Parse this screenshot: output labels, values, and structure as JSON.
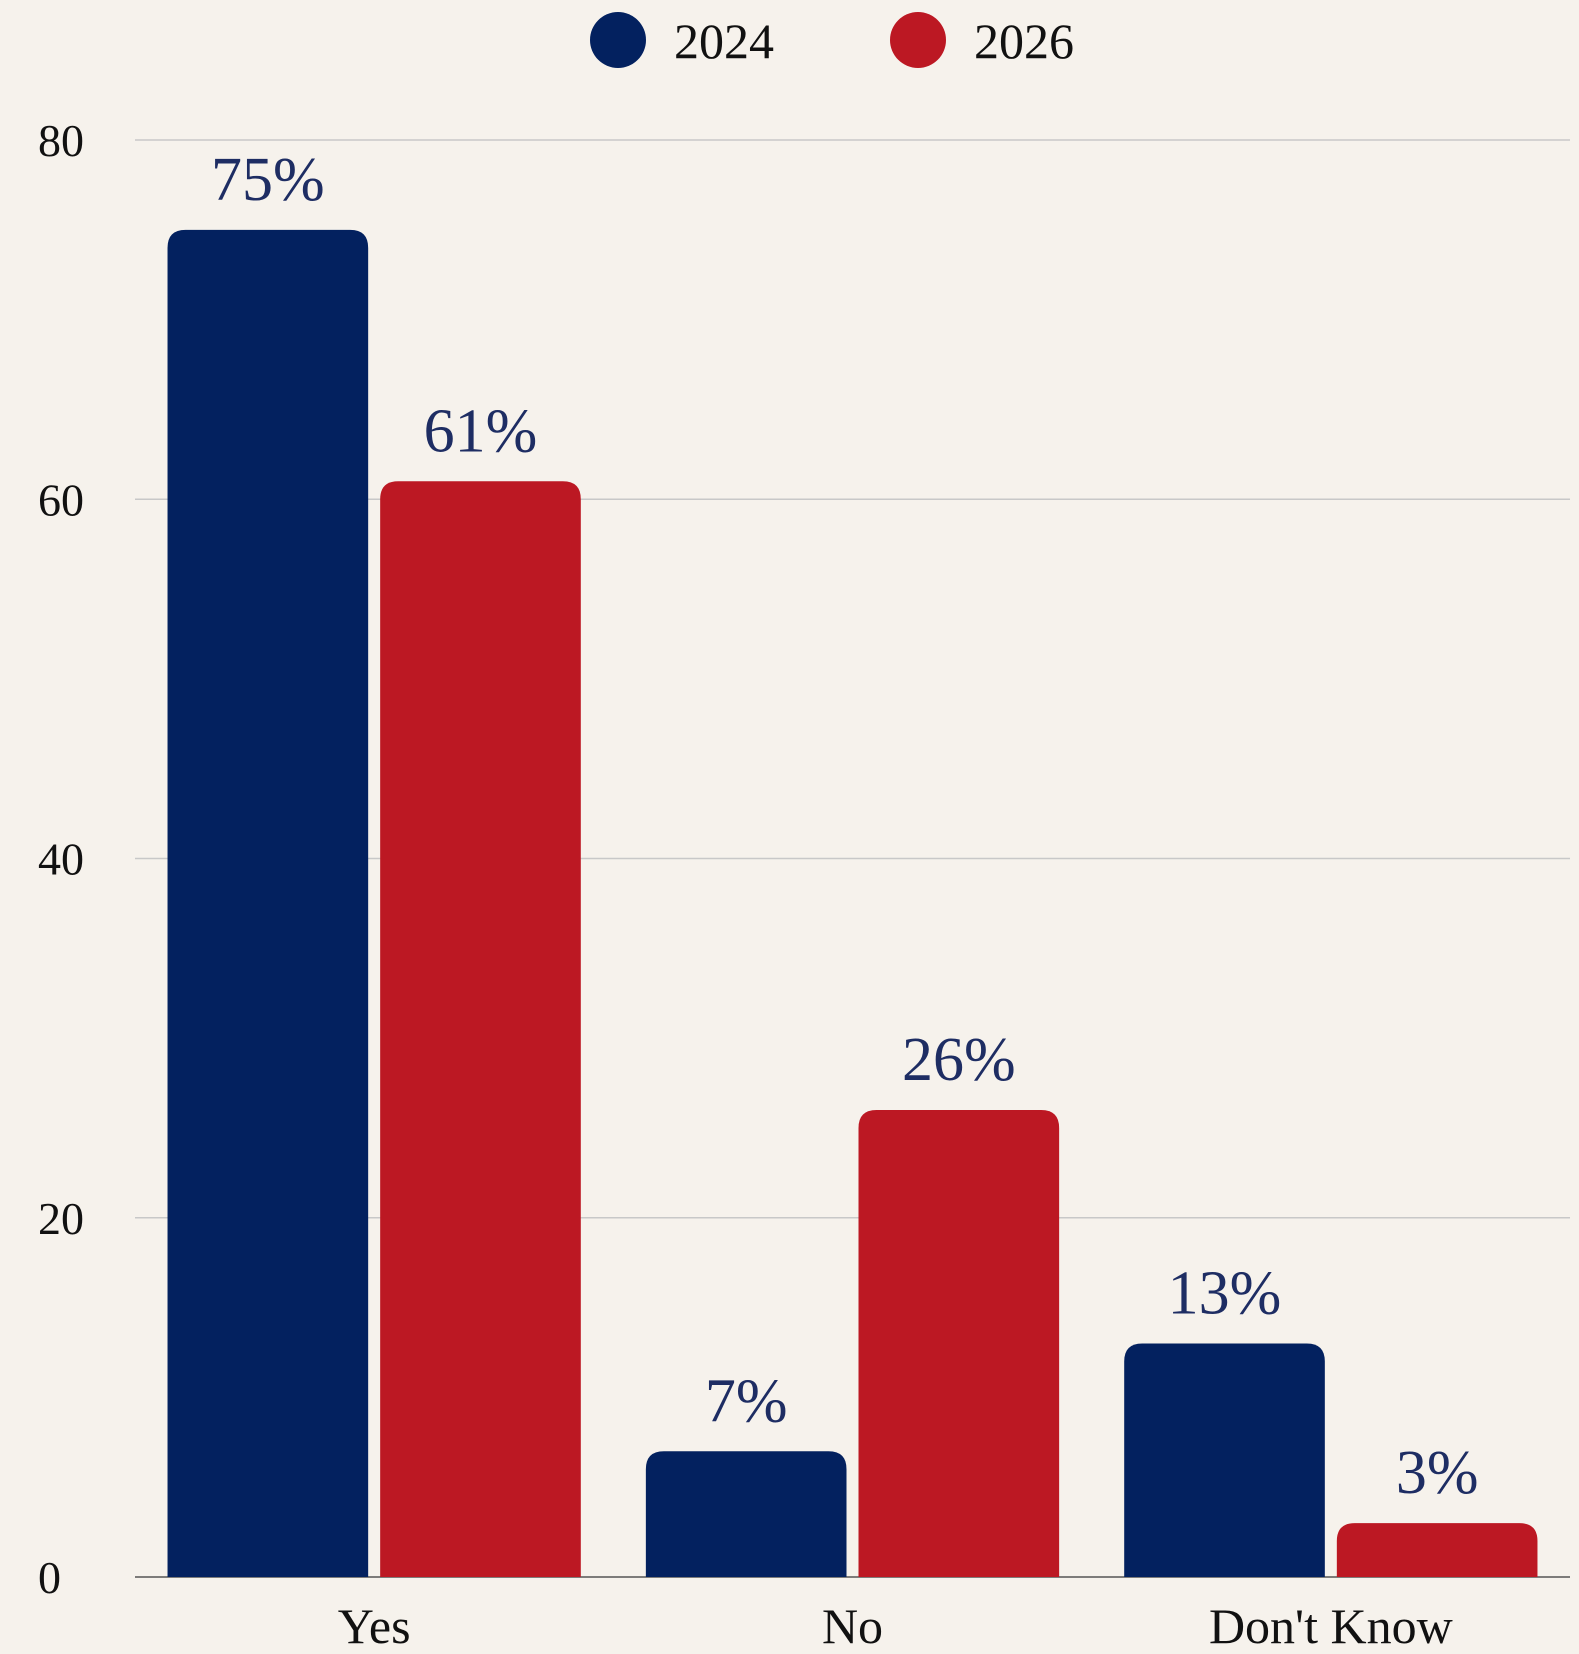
{
  "chart_data": {
    "type": "bar",
    "categories": [
      "Yes",
      "No",
      "Don't Know"
    ],
    "series": [
      {
        "name": "2024",
        "values": [
          75,
          7,
          13
        ],
        "labels": [
          "75%",
          "7%",
          "13%"
        ],
        "color": "#03215f"
      },
      {
        "name": "2026",
        "values": [
          61,
          26,
          3
        ],
        "labels": [
          "61%",
          "26%",
          "3%"
        ],
        "color": "#bc1823"
      }
    ],
    "ylim": [
      0,
      80
    ],
    "yticks": [
      0,
      20,
      40,
      60,
      80
    ],
    "ytick_labels": [
      "0",
      "20",
      "40",
      "60",
      "80"
    ],
    "grid": true,
    "legend_position": "top-center"
  },
  "colors": {
    "background": "#f6f2ec",
    "grid": "#c8c8c8",
    "axis_text": "#111111",
    "data_label": "#1e2d63"
  }
}
